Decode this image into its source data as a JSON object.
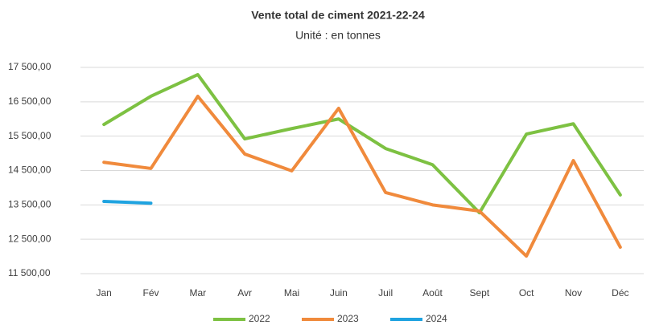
{
  "chart_data": {
    "type": "line",
    "title": "Vente total de ciment  2021-22-24",
    "subtitle": "Unité : en tonnes",
    "categories": [
      "Jan",
      "Fév",
      "Mar",
      "Avr",
      "Mai",
      "Juin",
      "Juil",
      "Août",
      "Sept",
      "Oct",
      "Nov",
      "Déc"
    ],
    "series": [
      {
        "name": "2022",
        "color": "#7dc142",
        "values": [
          15840,
          16660,
          17290,
          15420,
          15720,
          16000,
          15140,
          14670,
          13270,
          15560,
          15860,
          13790
        ]
      },
      {
        "name": "2023",
        "color": "#f08a3c",
        "values": [
          14740,
          14560,
          16660,
          14980,
          14490,
          16310,
          13860,
          13500,
          13320,
          12010,
          14790,
          12270
        ]
      },
      {
        "name": "2024",
        "color": "#1fa3e0",
        "values": [
          13600,
          13550,
          null,
          null,
          null,
          null,
          null,
          null,
          null,
          null,
          null,
          null
        ]
      }
    ],
    "ylim": [
      11500,
      17500
    ],
    "yticks": [
      {
        "value": 11500,
        "label": "11 500,00"
      },
      {
        "value": 12500,
        "label": "12 500,00"
      },
      {
        "value": 13500,
        "label": "13 500,00"
      },
      {
        "value": 14500,
        "label": "14 500,00"
      },
      {
        "value": 15500,
        "label": "15 500,00"
      },
      {
        "value": 16500,
        "label": "16 500,00"
      },
      {
        "value": 17500,
        "label": "17 500,00"
      }
    ],
    "grid": true,
    "legend": "bottom"
  }
}
